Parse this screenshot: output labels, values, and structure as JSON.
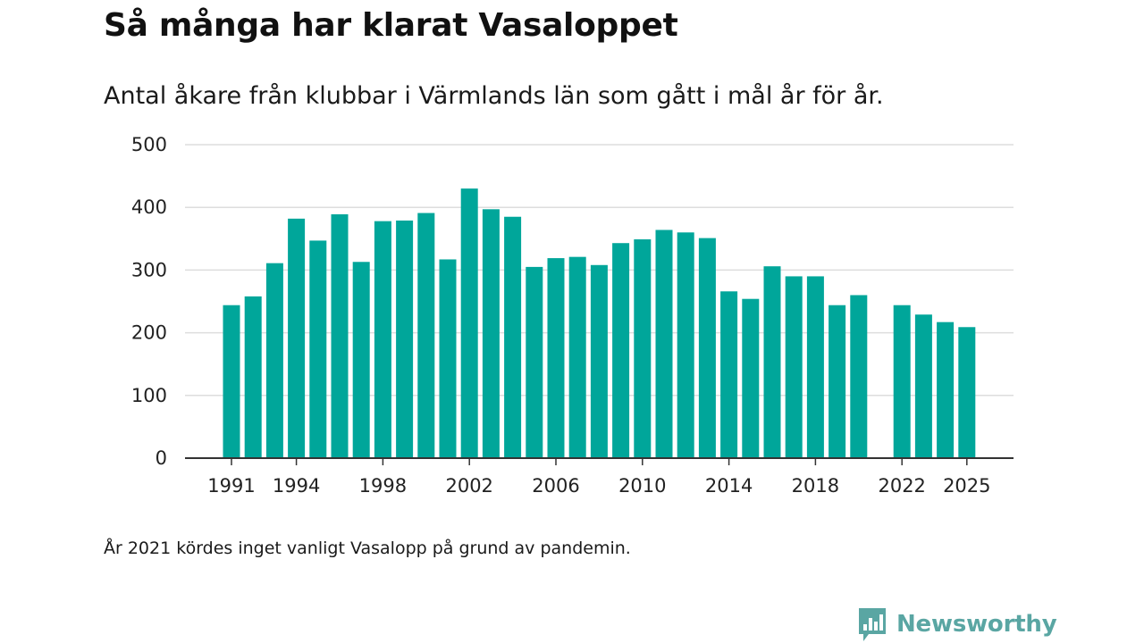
{
  "title": "Så många har klarat Vasaloppet",
  "subtitle": "Antal åkare från klubbar i Värmlands län som gått i mål år för år.",
  "note": "År 2021 kördes inget vanligt Vasalopp på grund av pandemin.",
  "brand": {
    "name": "Newsworthy",
    "icon": "newsworthy-logo-icon"
  },
  "colors": {
    "bar": "#00a69a",
    "grid": "#dddddd",
    "axis": "#333333",
    "brand": "#5aa6a3"
  },
  "chart_data": {
    "type": "bar",
    "title": "Så många har klarat Vasaloppet",
    "xlabel": "",
    "ylabel": "",
    "ylim": [
      0,
      500
    ],
    "yticks": [
      0,
      100,
      200,
      300,
      400,
      500
    ],
    "xticks": [
      1991,
      1994,
      1998,
      2002,
      2006,
      2010,
      2014,
      2018,
      2022,
      2025
    ],
    "grid": true,
    "x": [
      1991,
      1992,
      1993,
      1994,
      1995,
      1996,
      1997,
      1998,
      1999,
      2000,
      2001,
      2002,
      2003,
      2004,
      2005,
      2006,
      2007,
      2008,
      2009,
      2010,
      2011,
      2012,
      2013,
      2014,
      2015,
      2016,
      2017,
      2018,
      2019,
      2020,
      2021,
      2022,
      2023,
      2024,
      2025
    ],
    "values": [
      244,
      258,
      311,
      382,
      347,
      389,
      313,
      378,
      379,
      391,
      317,
      430,
      397,
      385,
      305,
      319,
      321,
      308,
      343,
      349,
      364,
      360,
      351,
      266,
      254,
      306,
      290,
      290,
      244,
      260,
      null,
      244,
      229,
      217,
      209
    ]
  }
}
